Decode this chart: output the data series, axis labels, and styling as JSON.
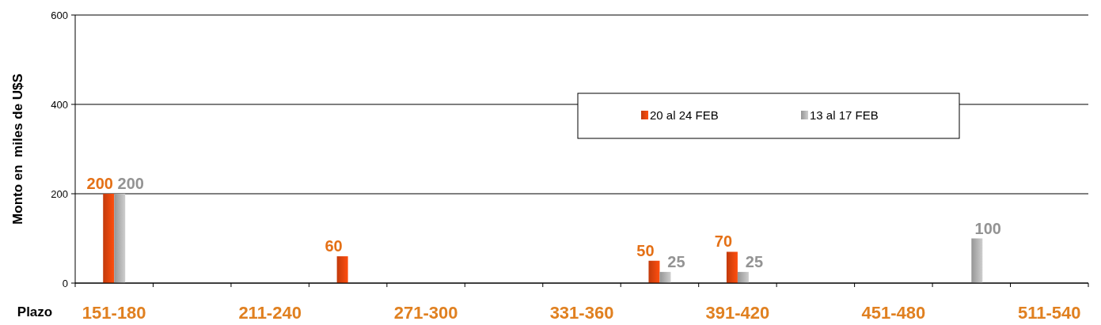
{
  "chart_data": {
    "type": "bar",
    "xlabel": "Plazo",
    "ylabel": "Monto en  miles de U$S",
    "categories": [
      "151-180",
      null,
      "211-240",
      null,
      "271-300",
      null,
      "331-360",
      null,
      "391-420",
      null,
      "451-480",
      null,
      "511-540"
    ],
    "series": [
      {
        "name": "20 al 24 FEB",
        "color": "#d8400c",
        "values": [
          200,
          null,
          null,
          60,
          null,
          null,
          null,
          50,
          70,
          null,
          null,
          null,
          null
        ]
      },
      {
        "name": "13 al 17 FEB",
        "color": "#a6a6a6",
        "values": [
          200,
          null,
          null,
          null,
          null,
          null,
          null,
          25,
          25,
          null,
          null,
          100,
          null
        ]
      }
    ],
    "ylim": [
      0,
      600
    ],
    "yticks": [
      0,
      200,
      400,
      600
    ],
    "grid": "y",
    "legend": "top right",
    "data_labels": true
  }
}
